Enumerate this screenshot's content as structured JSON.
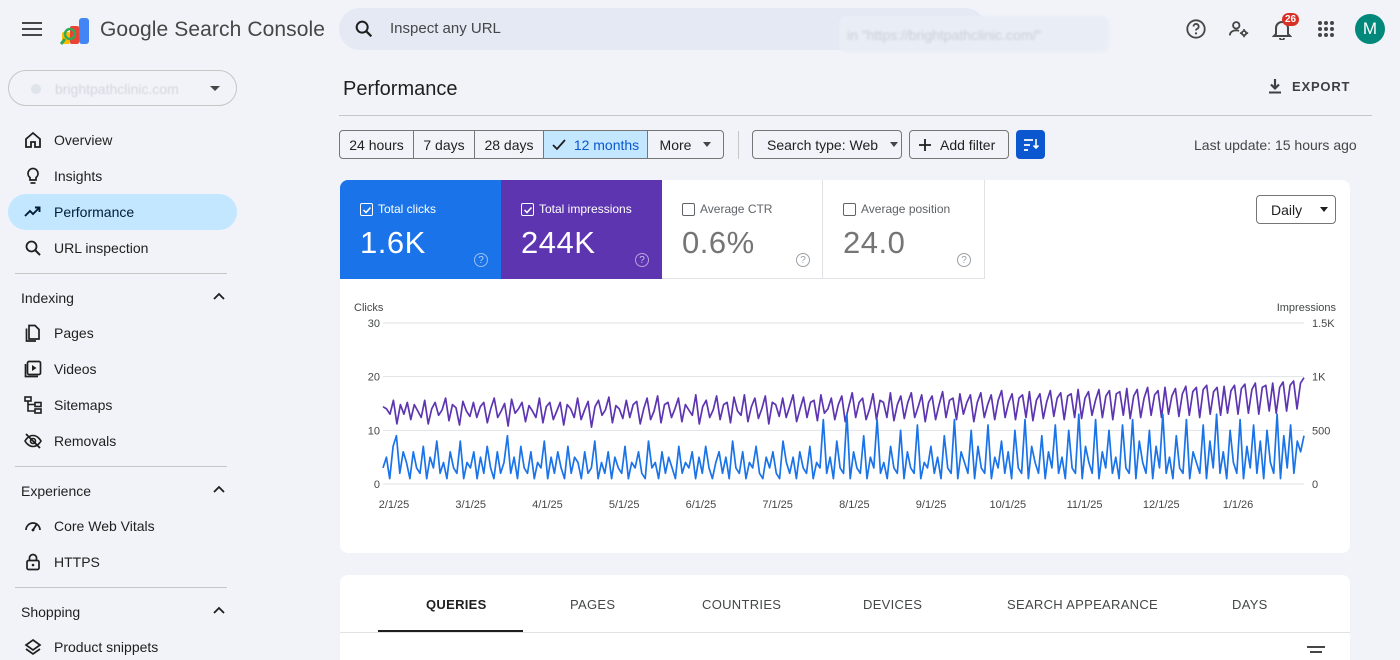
{
  "app": {
    "name": "Google Search Console"
  },
  "search": {
    "placeholder": "Inspect any URL",
    "blurred_url": "in \"https://brightpathclinic.com/\""
  },
  "notifications": {
    "count": "26"
  },
  "user": {
    "initial": "M"
  },
  "property": {
    "name": "brightpathclinic.com"
  },
  "sidebar": {
    "items": [
      {
        "label": "Overview",
        "icon": "home-icon"
      },
      {
        "label": "Insights",
        "icon": "lightbulb-icon"
      },
      {
        "label": "Performance",
        "icon": "trending-up-icon",
        "active": true
      },
      {
        "label": "URL inspection",
        "icon": "search-icon"
      }
    ],
    "indexing": {
      "title": "Indexing",
      "items": [
        {
          "label": "Pages",
          "icon": "pages-icon"
        },
        {
          "label": "Videos",
          "icon": "video-icon"
        },
        {
          "label": "Sitemaps",
          "icon": "sitemap-icon"
        },
        {
          "label": "Removals",
          "icon": "eye-off-icon"
        }
      ]
    },
    "experience": {
      "title": "Experience",
      "items": [
        {
          "label": "Core Web Vitals",
          "icon": "speed-icon"
        },
        {
          "label": "HTTPS",
          "icon": "lock-icon"
        }
      ]
    },
    "shopping": {
      "title": "Shopping",
      "items": [
        {
          "label": "Product snippets",
          "icon": "layers-icon"
        }
      ]
    }
  },
  "main": {
    "title": "Performance",
    "export_label": "EXPORT",
    "ranges": [
      "24 hours",
      "7 days",
      "28 days",
      "12 months",
      "More"
    ],
    "selected_range": "12 months",
    "search_type": "Search type: Web",
    "add_filter": "Add filter",
    "last_update": "Last update: 15 hours ago"
  },
  "metrics": [
    {
      "label": "Total clicks",
      "value": "1.6K",
      "checked": true,
      "color": "#1a73e8"
    },
    {
      "label": "Total impressions",
      "value": "244K",
      "checked": true,
      "color": "#5e35b1"
    },
    {
      "label": "Average CTR",
      "value": "0.6%",
      "checked": false
    },
    {
      "label": "Average position",
      "value": "24.0",
      "checked": false
    }
  ],
  "granularity": "Daily",
  "chart_data": {
    "type": "line",
    "left_axis": {
      "label": "Clicks",
      "ticks": [
        "30",
        "20",
        "10",
        "0"
      ],
      "ylim": [
        0,
        30
      ]
    },
    "right_axis": {
      "label": "Impressions",
      "ticks": [
        "1.5K",
        "1K",
        "500",
        "0"
      ],
      "ylim": [
        0,
        1500
      ]
    },
    "x_ticks": [
      "2/1/25",
      "3/1/25",
      "4/1/25",
      "5/1/25",
      "6/1/25",
      "7/1/25",
      "8/1/25",
      "9/1/25",
      "10/1/25",
      "11/1/25",
      "12/1/25",
      "1/1/26"
    ],
    "series": [
      {
        "color": "#5e35b1",
        "axis": "right",
        "values": [
          720,
          700,
          650,
          780,
          560,
          740,
          650,
          760,
          600,
          740,
          680,
          620,
          780,
          560,
          700,
          760,
          640,
          690,
          800,
          590,
          740,
          710,
          550,
          770,
          680,
          630,
          760,
          620,
          720,
          760,
          570,
          700,
          800,
          620,
          680,
          750,
          540,
          790,
          660,
          700,
          760,
          580,
          730,
          680,
          620,
          800,
          570,
          720,
          760,
          600,
          680,
          760,
          550,
          740,
          700,
          620,
          800,
          600,
          690,
          770,
          530,
          720,
          780,
          640,
          690,
          810,
          570,
          730,
          700,
          610,
          780,
          620,
          740,
          770,
          560,
          700,
          800,
          600,
          680,
          820,
          570,
          740,
          760,
          620,
          700,
          800,
          580,
          740,
          690,
          640,
          830,
          560,
          720,
          780,
          620,
          690,
          820,
          600,
          740,
          760,
          570,
          810,
          680,
          640,
          830,
          580,
          720,
          800,
          610,
          700,
          820,
          560,
          760,
          740,
          630,
          800,
          620,
          720,
          830,
          580,
          700,
          810,
          620,
          760,
          780,
          590,
          830,
          660,
          700,
          800,
          600,
          740,
          820,
          580,
          720,
          850,
          620,
          760,
          800,
          600,
          700,
          840,
          600,
          780,
          760,
          620,
          850,
          590,
          740,
          820,
          610,
          760,
          850,
          620,
          720,
          830,
          580,
          760,
          820,
          600,
          740,
          860,
          620,
          780,
          800,
          600,
          840,
          650,
          760,
          830,
          580,
          760,
          850,
          620,
          740,
          830,
          600,
          780,
          870,
          620,
          760,
          840,
          600,
          800,
          830,
          620,
          860,
          590,
          780,
          840,
          610,
          770,
          870,
          630,
          800,
          850,
          600,
          820,
          840,
          620,
          880,
          610,
          800,
          860,
          640,
          780,
          880,
          620,
          820,
          870,
          600,
          840,
          860,
          640,
          890,
          610,
          820,
          880,
          620,
          800,
          900,
          640,
          830,
          870,
          620,
          900,
          650,
          820,
          890,
          630,
          840,
          910,
          640,
          860,
          900,
          620,
          880,
          920,
          650,
          860,
          900,
          640,
          910,
          660,
          870,
          920,
          650,
          890,
          930,
          660,
          880,
          940,
          650,
          900,
          920,
          680,
          940,
          660,
          900,
          950,
          680,
          920,
          960,
          700,
          940,
          990
        ]
      },
      {
        "color": "#1a73e8",
        "axis": "left",
        "values": [
          3,
          5,
          1,
          7,
          9,
          2,
          6,
          4,
          1,
          6,
          3,
          2,
          7,
          1,
          5,
          3,
          8,
          2,
          4,
          1,
          6,
          3,
          2,
          8,
          1,
          4,
          3,
          6,
          1,
          5,
          2,
          7,
          3,
          1,
          6,
          2,
          4,
          9,
          2,
          5,
          1,
          7,
          3,
          2,
          6,
          1,
          4,
          3,
          8,
          1,
          5,
          2,
          6,
          3,
          1,
          7,
          2,
          5,
          4,
          1,
          6,
          2,
          3,
          8,
          1,
          4,
          2,
          6,
          1,
          5,
          3,
          2,
          7,
          1,
          4,
          3,
          6,
          2,
          1,
          8,
          3,
          4,
          1,
          6,
          2,
          5,
          3,
          1,
          7,
          2,
          4,
          3,
          6,
          1,
          5,
          2,
          7,
          3,
          1,
          4,
          6,
          2,
          5,
          1,
          8,
          3,
          2,
          6,
          1,
          4,
          3,
          7,
          2,
          1,
          5,
          3,
          6,
          2,
          1,
          8,
          4,
          2,
          5,
          1,
          6,
          3,
          2,
          7,
          1,
          4,
          3,
          12,
          2,
          5,
          1,
          8,
          3,
          2,
          13,
          1,
          6,
          3,
          2,
          9,
          1,
          5,
          3,
          12,
          2,
          4,
          1,
          7,
          3,
          2,
          10,
          1,
          6,
          3,
          2,
          11,
          1,
          4,
          3,
          7,
          2,
          5,
          1,
          9,
          3,
          2,
          12,
          1,
          6,
          4,
          2,
          10,
          1,
          7,
          3,
          2,
          11,
          1,
          5,
          3,
          8,
          2,
          6,
          1,
          10,
          3,
          2,
          12,
          1,
          7,
          4,
          2,
          9,
          1,
          6,
          3,
          11,
          2,
          5,
          1,
          10,
          3,
          2,
          13,
          1,
          7,
          4,
          2,
          12,
          1,
          6,
          3,
          10,
          2,
          5,
          1,
          11,
          3,
          2,
          12,
          1,
          8,
          4,
          2,
          10,
          1,
          7,
          3,
          13,
          2,
          5,
          1,
          9,
          3,
          2,
          12,
          1,
          6,
          4,
          2,
          11,
          1,
          8,
          3,
          13,
          2,
          6,
          1,
          10,
          4,
          2,
          12,
          1,
          7,
          3,
          11,
          2,
          8,
          1,
          10,
          4,
          2,
          13,
          1,
          9,
          3,
          11,
          2,
          8,
          6,
          9
        ]
      }
    ]
  },
  "tabs": [
    "QUERIES",
    "PAGES",
    "COUNTRIES",
    "DEVICES",
    "SEARCH APPEARANCE",
    "DAYS"
  ]
}
